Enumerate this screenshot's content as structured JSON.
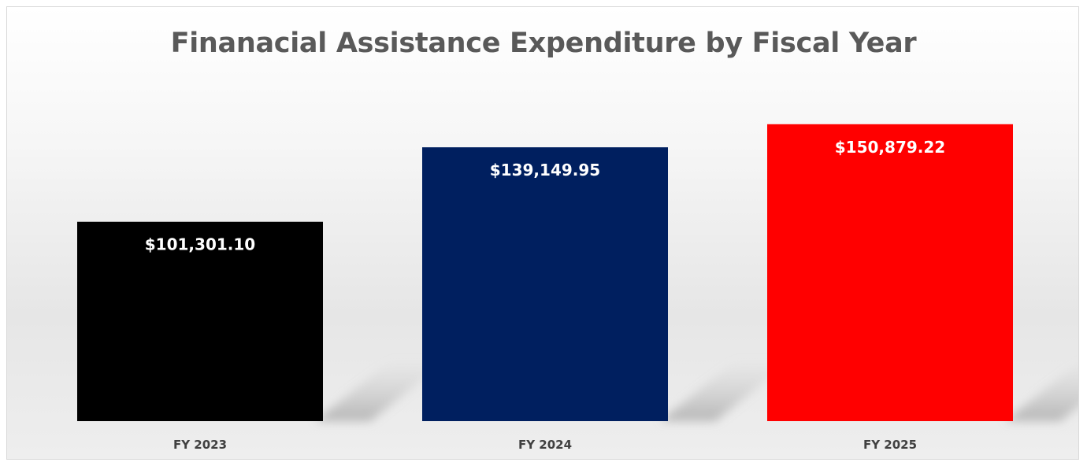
{
  "chart_data": {
    "type": "bar",
    "title": "Finanacial Assistance Expenditure by Fiscal Year",
    "xlabel": "",
    "ylabel": "",
    "categories": [
      "FY 2023",
      "FY 2024",
      "FY 2025"
    ],
    "values": [
      101301.1,
      139149.95,
      150879.22
    ],
    "data_labels": [
      "$101,301.10",
      "$139,149.95",
      "$150,879.22"
    ],
    "colors": [
      "#000000",
      "#001f5f",
      "#ff0000"
    ],
    "ylim": [
      0,
      160000
    ],
    "grid": false,
    "legend": "none"
  }
}
